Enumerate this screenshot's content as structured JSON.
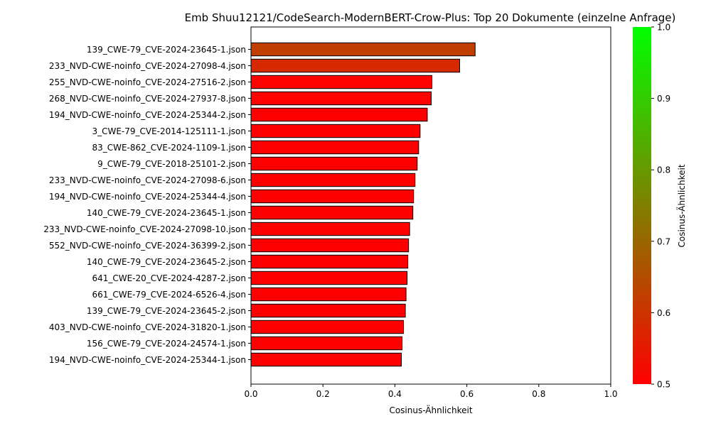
{
  "chart_data": {
    "type": "bar",
    "orientation": "horizontal",
    "title": "Emb Shuu12121/CodeSearch-ModernBERT-Crow-Plus: Top 20 Dokumente (einzelne Anfrage)",
    "xlabel": "Cosinus-Ähnlichkeit",
    "ylabel": "",
    "xlim": [
      0,
      1
    ],
    "xticks": [
      "0.0",
      "0.2",
      "0.4",
      "0.6",
      "0.8",
      "1.0"
    ],
    "xtick_values": [
      0,
      0.2,
      0.4,
      0.6,
      0.8,
      1.0
    ],
    "grid": false,
    "categories": [
      "139_CWE-79_CVE-2024-23645-1.json",
      "233_NVD-CWE-noinfo_CVE-2024-27098-4.json",
      "255_NVD-CWE-noinfo_CVE-2024-27516-2.json",
      "268_NVD-CWE-noinfo_CVE-2024-27937-8.json",
      "194_NVD-CWE-noinfo_CVE-2024-25344-2.json",
      "3_CWE-79_CVE-2014-125111-1.json",
      "83_CWE-862_CVE-2024-1109-1.json",
      "9_CWE-79_CVE-2018-25101-2.json",
      "233_NVD-CWE-noinfo_CVE-2024-27098-6.json",
      "194_NVD-CWE-noinfo_CVE-2024-25344-4.json",
      "140_CWE-79_CVE-2024-23645-1.json",
      "233_NVD-CWE-noinfo_CVE-2024-27098-10.json",
      "552_NVD-CWE-noinfo_CVE-2024-36399-2.json",
      "140_CWE-79_CVE-2024-23645-2.json",
      "641_CWE-20_CVE-2024-4287-2.json",
      "661_CWE-79_CVE-2024-6526-4.json",
      "139_CWE-79_CVE-2024-23645-2.json",
      "403_NVD-CWE-noinfo_CVE-2024-31820-1.json",
      "156_CWE-79_CVE-2024-24574-1.json",
      "194_NVD-CWE-noinfo_CVE-2024-25344-1.json"
    ],
    "values": [
      0.623,
      0.58,
      0.503,
      0.501,
      0.49,
      0.47,
      0.466,
      0.462,
      0.456,
      0.452,
      0.45,
      0.441,
      0.438,
      0.436,
      0.434,
      0.431,
      0.429,
      0.424,
      0.42,
      0.418
    ],
    "colorbar": {
      "label": "Cosinus-Ähnlichkeit",
      "range": [
        0.5,
        1.0
      ],
      "ticks": [
        "0.5",
        "0.6",
        "0.7",
        "0.8",
        "0.9",
        "1.0"
      ],
      "tick_values": [
        0.5,
        0.6,
        0.7,
        0.8,
        0.9,
        1.0
      ],
      "color_low": "#ff0000",
      "color_high": "#00ff00"
    },
    "bar_edge_color": "#000000"
  }
}
